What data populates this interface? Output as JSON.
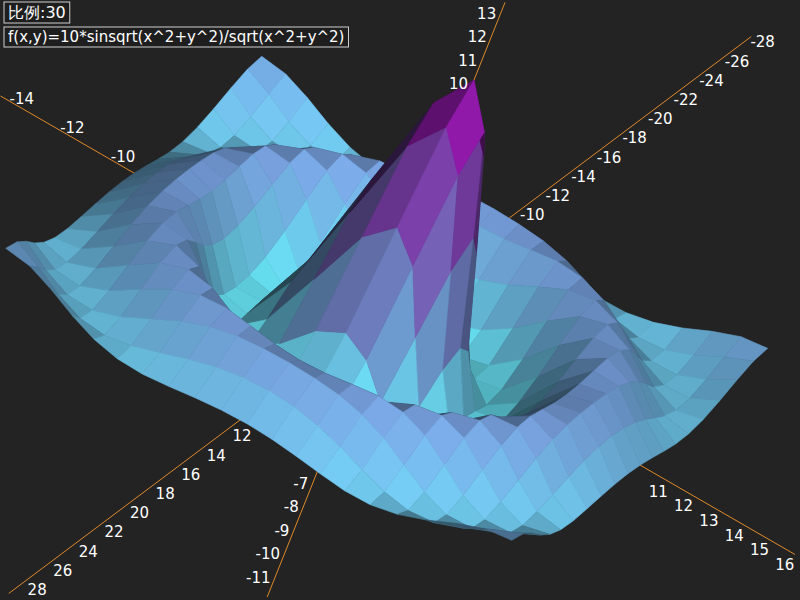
{
  "chart_data": {
    "type": "surface",
    "title": "f(x,y)=10*sinsqrt(x^2+y^2)/sqrt(x^2+y^2)",
    "subtitle": "比例:30",
    "x": [
      -10,
      -9,
      -8,
      -7,
      -6,
      -5,
      -4,
      -3,
      -2,
      -1,
      0,
      1,
      2,
      3,
      4,
      5,
      6,
      7,
      8,
      9,
      10
    ],
    "y": [
      -10,
      -9,
      -8,
      -7,
      -6,
      -5,
      -4,
      -3,
      -2,
      -1,
      0,
      1,
      2,
      3,
      4,
      5,
      6,
      7,
      8,
      9,
      10
    ],
    "z": [
      [
        0.71,
        0.58,
        0.19,
        -0.29,
        -0.67,
        -0.88,
        -0.91,
        -0.81,
        -0.68,
        -0.58,
        -0.54,
        -0.58,
        -0.68,
        -0.81,
        -0.91,
        -0.88,
        -0.67,
        -0.29,
        0.19,
        0.58,
        0.71
      ],
      [
        0.58,
        0.13,
        -0.42,
        -0.81,
        -0.91,
        -0.74,
        -0.42,
        -0.07,
        0.22,
        0.4,
        0.46,
        0.4,
        0.22,
        -0.07,
        -0.42,
        -0.74,
        -0.91,
        -0.81,
        -0.42,
        0.13,
        0.58
      ],
      [
        0.19,
        -0.42,
        -0.84,
        -0.88,
        -0.54,
        -0.01,
        0.52,
        0.9,
        1.12,
        1.21,
        1.24,
        1.21,
        1.12,
        0.9,
        0.52,
        -0.01,
        -0.54,
        -0.88,
        -0.84,
        -0.42,
        0.19
      ],
      [
        -0.29,
        -0.81,
        -0.88,
        -0.46,
        0.22,
        0.85,
        1.21,
        1.28,
        1.15,
        1.0,
        0.94,
        1.0,
        1.15,
        1.28,
        1.21,
        0.85,
        0.22,
        -0.46,
        -0.88,
        -0.81,
        -0.29
      ],
      [
        -0.67,
        -0.91,
        -0.54,
        0.22,
        0.95,
        1.28,
        1.11,
        0.61,
        0.07,
        -0.33,
        -0.47,
        -0.33,
        0.07,
        0.61,
        1.11,
        1.28,
        0.95,
        0.22,
        -0.54,
        -0.91,
        -0.67
      ],
      [
        -0.88,
        -0.74,
        -0.01,
        0.85,
        1.28,
        1.0,
        0.19,
        -0.75,
        -1.45,
        -1.82,
        -1.92,
        -1.82,
        -1.45,
        -0.75,
        0.19,
        1.0,
        1.28,
        0.85,
        -0.01,
        -0.74,
        -0.88
      ],
      [
        -0.91,
        -0.42,
        0.52,
        1.21,
        1.11,
        0.19,
        -1.04,
        -1.92,
        -2.17,
        -2.02,
        -1.89,
        -2.02,
        -2.17,
        -1.92,
        -1.04,
        0.19,
        1.11,
        1.21,
        0.52,
        -0.42,
        -0.91
      ],
      [
        -0.81,
        -0.07,
        0.9,
        1.28,
        0.61,
        -0.75,
        -1.92,
        -2.1,
        -1.24,
        -0.07,
        0.47,
        -0.07,
        -1.24,
        -2.1,
        -1.92,
        -0.75,
        0.61,
        1.28,
        0.9,
        -0.07,
        -0.81
      ],
      [
        -0.68,
        0.22,
        1.12,
        1.15,
        0.07,
        -1.45,
        -2.17,
        -1.24,
        1.09,
        3.52,
        4.55,
        3.52,
        1.09,
        -1.24,
        -2.17,
        -1.45,
        0.07,
        1.15,
        1.12,
        0.22,
        -0.68
      ],
      [
        -0.58,
        0.4,
        1.21,
        1.0,
        -0.33,
        -1.82,
        -2.02,
        -0.07,
        3.52,
        6.98,
        8.41,
        6.98,
        3.52,
        -0.07,
        -2.02,
        -1.82,
        -0.33,
        1.0,
        1.21,
        0.4,
        -0.58
      ],
      [
        -0.54,
        0.46,
        1.24,
        0.94,
        -0.47,
        -1.92,
        -1.89,
        0.47,
        4.55,
        8.41,
        10,
        8.41,
        4.55,
        0.47,
        -1.89,
        -1.92,
        -0.47,
        0.94,
        1.24,
        0.46,
        -0.54
      ],
      [
        -0.58,
        0.4,
        1.21,
        1.0,
        -0.33,
        -1.82,
        -2.02,
        -0.07,
        3.52,
        6.98,
        8.41,
        6.98,
        3.52,
        -0.07,
        -2.02,
        -1.82,
        -0.33,
        1.0,
        1.21,
        0.4,
        -0.58
      ],
      [
        -0.68,
        0.22,
        1.12,
        1.15,
        0.07,
        -1.45,
        -2.17,
        -1.24,
        1.09,
        3.52,
        4.55,
        3.52,
        1.09,
        -1.24,
        -2.17,
        -1.45,
        0.07,
        1.15,
        1.12,
        0.22,
        -0.68
      ],
      [
        -0.81,
        -0.07,
        0.9,
        1.28,
        0.61,
        -0.75,
        -1.92,
        -2.1,
        -1.24,
        -0.07,
        0.47,
        -0.07,
        -1.24,
        -2.1,
        -1.92,
        -0.75,
        0.61,
        1.28,
        0.9,
        -0.07,
        -0.81
      ],
      [
        -0.91,
        -0.42,
        0.52,
        1.21,
        1.11,
        0.19,
        -1.04,
        -1.92,
        -2.17,
        -2.02,
        -1.89,
        -2.02,
        -2.17,
        -1.92,
        -1.04,
        0.19,
        1.11,
        1.21,
        0.52,
        -0.42,
        -0.91
      ],
      [
        -0.88,
        -0.74,
        -0.01,
        0.85,
        1.28,
        1.0,
        0.19,
        -0.75,
        -1.45,
        -1.82,
        -1.92,
        -1.82,
        -1.45,
        -0.75,
        0.19,
        1.0,
        1.28,
        0.85,
        -0.01,
        -0.74,
        -0.88
      ],
      [
        -0.67,
        -0.91,
        -0.54,
        0.22,
        0.95,
        1.28,
        1.11,
        0.61,
        0.07,
        -0.33,
        -0.47,
        -0.33,
        0.07,
        0.61,
        1.11,
        1.28,
        0.95,
        0.22,
        -0.54,
        -0.91,
        -0.67
      ],
      [
        -0.29,
        -0.81,
        -0.88,
        -0.46,
        0.22,
        0.85,
        1.21,
        1.28,
        1.15,
        1.0,
        0.94,
        1.0,
        1.15,
        1.28,
        1.21,
        0.85,
        0.22,
        -0.46,
        -0.88,
        -0.81,
        -0.29
      ],
      [
        0.19,
        -0.42,
        -0.84,
        -0.88,
        -0.54,
        -0.01,
        0.52,
        0.9,
        1.12,
        1.21,
        1.24,
        1.21,
        1.12,
        0.9,
        0.52,
        -0.01,
        -0.54,
        -0.88,
        -0.84,
        -0.42,
        0.19
      ],
      [
        0.58,
        0.13,
        -0.42,
        -0.81,
        -0.91,
        -0.74,
        -0.42,
        -0.07,
        0.22,
        0.4,
        0.46,
        0.4,
        0.22,
        -0.07,
        -0.42,
        -0.74,
        -0.91,
        -0.81,
        -0.42,
        0.13,
        0.58
      ],
      [
        0.71,
        0.58,
        0.19,
        -0.29,
        -0.67,
        -0.88,
        -0.91,
        -0.81,
        -0.68,
        -0.58,
        -0.54,
        -0.58,
        -0.68,
        -0.81,
        -0.91,
        -0.88,
        -0.67,
        -0.29,
        0.19,
        0.58,
        0.71
      ]
    ],
    "xlim": [
      -15,
      16.4
    ],
    "xticks": [
      -14,
      -12,
      -10,
      11,
      12,
      13,
      14,
      15,
      16
    ],
    "ylim": [
      -29,
      29
    ],
    "yticks": [
      -28,
      -26,
      -24,
      -22,
      -20,
      -18,
      -16,
      -14,
      -12,
      -10,
      12,
      14,
      16,
      18,
      20,
      22,
      24,
      26,
      28
    ],
    "zlim": [
      -12,
      13.3
    ],
    "zticks": [
      -11,
      -10,
      -9,
      -8,
      -7,
      10,
      11,
      12,
      13
    ]
  }
}
